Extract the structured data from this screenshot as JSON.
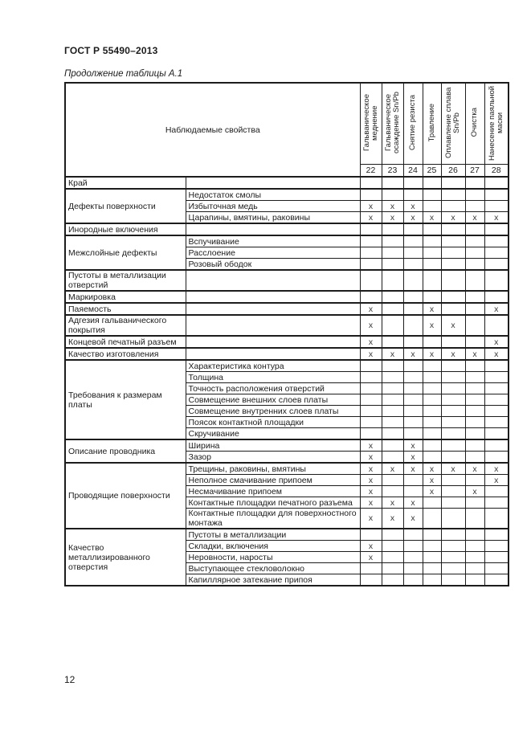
{
  "page": {
    "doc_code": "ГОСТ Р 55490–2013",
    "table_caption": "Продолжение таблицы А.1",
    "page_number": "12"
  },
  "colors": {
    "ink": "#1c1c1c",
    "paper": "#ffffff"
  },
  "table": {
    "header_title": "Наблюдаемые свойства",
    "mark_symbol": "х",
    "process_columns": [
      {
        "num": "22",
        "label": "Гальваническое меднение"
      },
      {
        "num": "23",
        "label": "Гальваническое осаждение Sn/Pb"
      },
      {
        "num": "24",
        "label": "Снятие резиста"
      },
      {
        "num": "25",
        "label": "Травление"
      },
      {
        "num": "26",
        "label": "Оплавление сплава Sn/Pb"
      },
      {
        "num": "27",
        "label": "Очистка"
      },
      {
        "num": "28",
        "label": "Нанесение паяльной маски"
      }
    ],
    "groups": [
      {
        "category": "Край",
        "rows": [
          {
            "property": "",
            "marks": []
          }
        ]
      },
      {
        "category": "Дефекты поверхности",
        "rows": [
          {
            "property": "Недостаток смолы",
            "marks": []
          },
          {
            "property": "Избыточная медь",
            "marks": [
              22,
              23,
              24
            ]
          },
          {
            "property": "Царапины, вмятины, раковины",
            "marks": [
              22,
              23,
              24,
              25,
              26,
              27,
              28
            ]
          }
        ]
      },
      {
        "category": "Инородные включения",
        "rows": [
          {
            "property": "",
            "marks": []
          }
        ]
      },
      {
        "category": "Межслойные дефекты",
        "rows": [
          {
            "property": "Вспучивание",
            "marks": []
          },
          {
            "property": "Расслоение",
            "marks": []
          },
          {
            "property": "Розовый ободок",
            "marks": []
          }
        ]
      },
      {
        "category": "Пустоты в металлизации отверстий",
        "rows": [
          {
            "property": "",
            "marks": []
          }
        ]
      },
      {
        "category": "Маркировка",
        "rows": [
          {
            "property": "",
            "marks": []
          }
        ]
      },
      {
        "category": "Паяемость",
        "rows": [
          {
            "property": "",
            "marks": [
              22,
              25,
              28
            ]
          }
        ]
      },
      {
        "category": "Адгезия гальванического покрытия",
        "rows": [
          {
            "property": "",
            "marks": [
              22,
              25,
              26
            ]
          }
        ]
      },
      {
        "category": "Концевой печатный разъем",
        "rows": [
          {
            "property": "",
            "marks": [
              22,
              28
            ]
          }
        ]
      },
      {
        "category": "Качество изготовления",
        "rows": [
          {
            "property": "",
            "marks": [
              22,
              23,
              24,
              25,
              26,
              27,
              28
            ]
          }
        ]
      },
      {
        "category": "Требования к размерам платы",
        "rows": [
          {
            "property": "Характеристика контура",
            "marks": []
          },
          {
            "property": "Толщина",
            "marks": []
          },
          {
            "property": "Точность расположения отверстий",
            "marks": []
          },
          {
            "property": "Совмещение внешних слоев платы",
            "marks": []
          },
          {
            "property": "Совмещение внутренних слоев платы",
            "marks": []
          },
          {
            "property": "Поясок контактной площадки",
            "marks": []
          },
          {
            "property": "Скручивание",
            "marks": []
          }
        ]
      },
      {
        "category": "Описание проводника",
        "rows": [
          {
            "property": "Ширина",
            "marks": [
              22,
              24
            ]
          },
          {
            "property": "Зазор",
            "marks": [
              22,
              24
            ]
          }
        ]
      },
      {
        "category": "Проводящие поверхности",
        "rows": [
          {
            "property": "Трещины, раковины, вмятины",
            "marks": [
              22,
              23,
              24,
              25,
              26,
              27,
              28
            ]
          },
          {
            "property": "Неполное смачивание припоем",
            "marks": [
              22,
              25,
              28
            ]
          },
          {
            "property": "Несмачивание припоем",
            "marks": [
              22,
              25,
              27
            ]
          },
          {
            "property": "Контактные площадки печатного разъема",
            "marks": [
              22,
              23,
              24
            ]
          },
          {
            "property": "Контактные площадки для поверхностного монтажа",
            "marks": [
              22,
              23,
              24
            ]
          }
        ]
      },
      {
        "category": "Качество металлизированного отверстия",
        "rows": [
          {
            "property": "Пустоты в металлизации",
            "marks": []
          },
          {
            "property": "Складки, включения",
            "marks": [
              22
            ]
          },
          {
            "property": "Неровности, наросты",
            "marks": [
              22
            ]
          },
          {
            "property": "Выступающее стекловолокно",
            "marks": []
          },
          {
            "property": "Капиллярное затекание припоя",
            "marks": []
          }
        ]
      }
    ]
  }
}
